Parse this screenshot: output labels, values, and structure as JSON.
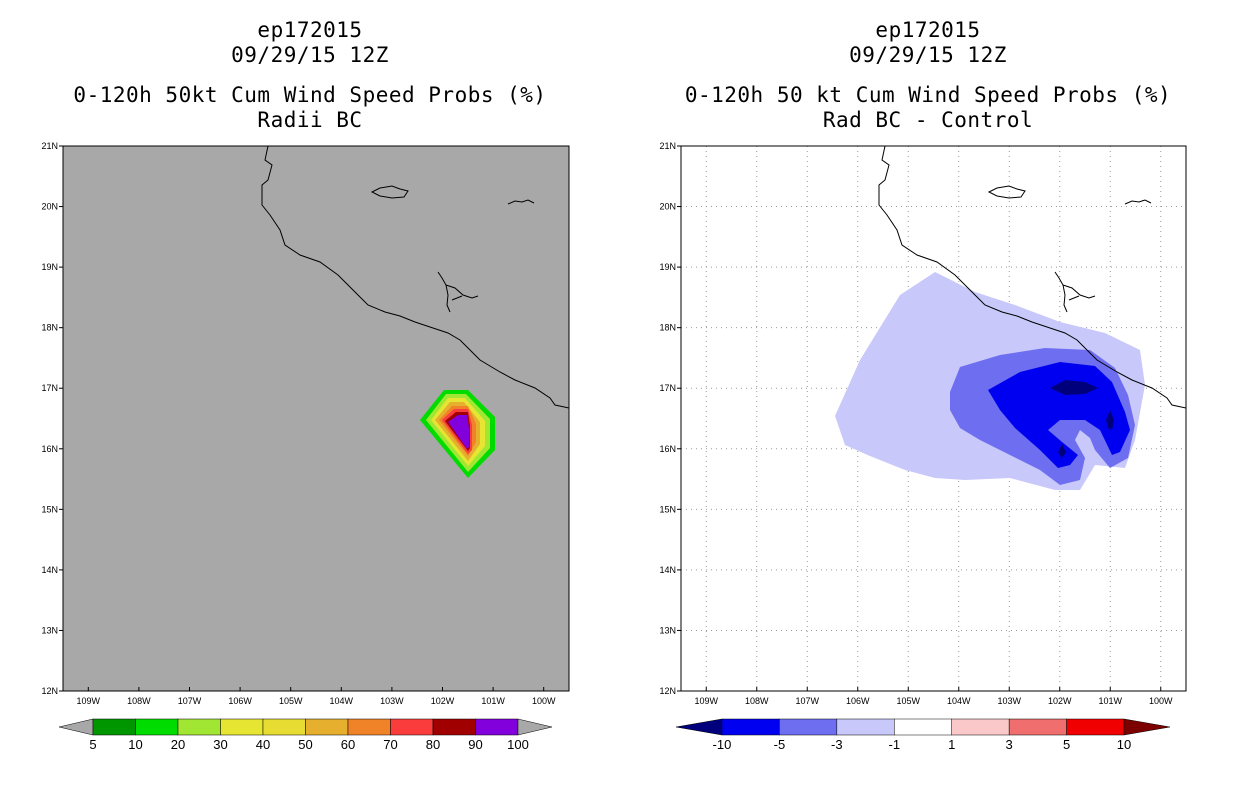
{
  "left": {
    "case_id": "ep172015",
    "datetime": "09/29/15 12Z",
    "product": "0-120h 50kt Cum Wind Speed Probs (%)",
    "subtitle": "Radii BC",
    "lat_labels": [
      "21N",
      "20N",
      "19N",
      "18N",
      "17N",
      "16N",
      "15N",
      "14N",
      "13N",
      "12N"
    ],
    "lon_labels": [
      "109W",
      "108W",
      "107W",
      "106W",
      "105W",
      "104W",
      "103W",
      "102W",
      "101W",
      "100W"
    ],
    "colorbar": {
      "labels": [
        "5",
        "10",
        "20",
        "30",
        "40",
        "50",
        "60",
        "70",
        "80",
        "90",
        "100"
      ],
      "colors": [
        "#a8a8a8",
        "#009600",
        "#00dc00",
        "#a0e632",
        "#e6e632",
        "#e6dc32",
        "#e6af2d",
        "#f08228",
        "#fa3c3c",
        "#a00000",
        "#8200dc",
        "#a8a8a8"
      ]
    },
    "background_color": "#a8a8a8",
    "contour_colors": [
      "#00dc00",
      "#a0e632",
      "#e6e632",
      "#e6af2d",
      "#f08228",
      "#fa3c3c",
      "#a00000",
      "#8200dc"
    ]
  },
  "right": {
    "case_id": "ep172015",
    "datetime": "09/29/15 12Z",
    "product": "0-120h 50 kt Cum Wind Speed Probs (%)",
    "subtitle": "Rad BC - Control",
    "lat_labels": [
      "21N",
      "20N",
      "19N",
      "18N",
      "17N",
      "16N",
      "15N",
      "14N",
      "13N",
      "12N"
    ],
    "lon_labels": [
      "109W",
      "108W",
      "107W",
      "106W",
      "105W",
      "104W",
      "103W",
      "102W",
      "101W",
      "100W"
    ],
    "colorbar": {
      "labels": [
        "-10",
        "-5",
        "-3",
        "-1",
        "1",
        "3",
        "5",
        "10"
      ],
      "colors": [
        "#00007d",
        "#0000f0",
        "#6e6ef0",
        "#c8c8fa",
        "#ffffff",
        "#fac8c8",
        "#f06e6e",
        "#f00000",
        "#7d0000"
      ]
    },
    "contour_colors": [
      "#c8c8fa",
      "#6e6ef0",
      "#0000f0",
      "#00007d"
    ]
  }
}
